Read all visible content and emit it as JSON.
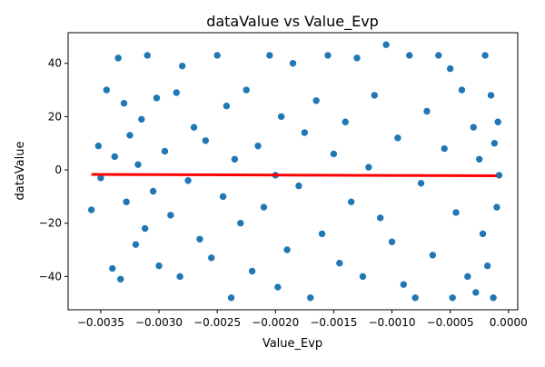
{
  "chart_data": {
    "type": "scatter",
    "title": "dataValue vs Value_Evp",
    "xlabel": "Value_Evp",
    "ylabel": "dataValue",
    "xlim": [
      -0.00378,
      8e-05
    ],
    "ylim": [
      -52.5,
      51.5
    ],
    "x_ticks": [
      -0.0035,
      -0.003,
      -0.0025,
      -0.002,
      -0.0015,
      -0.001,
      -0.0005,
      0.0
    ],
    "x_tick_labels": [
      "−0.0035",
      "−0.0030",
      "−0.0025",
      "−0.0020",
      "−0.0015",
      "−0.0010",
      "−0.0005",
      "0.0000"
    ],
    "y_ticks": [
      -40,
      -20,
      0,
      20,
      40
    ],
    "y_tick_labels": [
      "−40",
      "−20",
      "0",
      "20",
      "40"
    ],
    "grid": false,
    "colors": {
      "points": "#1f77b4",
      "point_edge": "#ffffff",
      "fit_line": "#ff0000"
    },
    "series": [
      {
        "type": "scatter",
        "values": [
          [
            -0.00358,
            -15
          ],
          [
            -0.00352,
            9
          ],
          [
            -0.0035,
            -3
          ],
          [
            -0.00345,
            30
          ],
          [
            -0.0034,
            -37
          ],
          [
            -0.00338,
            5
          ],
          [
            -0.00335,
            42
          ],
          [
            -0.00333,
            -41
          ],
          [
            -0.0033,
            25
          ],
          [
            -0.00328,
            -12
          ],
          [
            -0.00325,
            13
          ],
          [
            -0.0032,
            -28
          ],
          [
            -0.00318,
            2
          ],
          [
            -0.00315,
            19
          ],
          [
            -0.00312,
            -22
          ],
          [
            -0.0031,
            43
          ],
          [
            -0.00305,
            -8
          ],
          [
            -0.00302,
            27
          ],
          [
            -0.003,
            -36
          ],
          [
            -0.00295,
            7
          ],
          [
            -0.0029,
            -17
          ],
          [
            -0.00285,
            29
          ],
          [
            -0.00282,
            -40
          ],
          [
            -0.0028,
            39
          ],
          [
            -0.00275,
            -4
          ],
          [
            -0.0027,
            16
          ],
          [
            -0.00265,
            -26
          ],
          [
            -0.0026,
            11
          ],
          [
            -0.00255,
            -33
          ],
          [
            -0.0025,
            43
          ],
          [
            -0.00245,
            -10
          ],
          [
            -0.00242,
            24
          ],
          [
            -0.00238,
            -48
          ],
          [
            -0.00235,
            4
          ],
          [
            -0.0023,
            -20
          ],
          [
            -0.00225,
            30
          ],
          [
            -0.0022,
            -38
          ],
          [
            -0.00215,
            9
          ],
          [
            -0.0021,
            -14
          ],
          [
            -0.00205,
            43
          ],
          [
            -0.002,
            -2
          ],
          [
            -0.00198,
            -44
          ],
          [
            -0.00195,
            20
          ],
          [
            -0.0019,
            -30
          ],
          [
            -0.00185,
            40
          ],
          [
            -0.0018,
            -6
          ],
          [
            -0.00175,
            14
          ],
          [
            -0.0017,
            -48
          ],
          [
            -0.00165,
            26
          ],
          [
            -0.0016,
            -24
          ],
          [
            -0.00155,
            43
          ],
          [
            -0.0015,
            6
          ],
          [
            -0.00145,
            -35
          ],
          [
            -0.0014,
            18
          ],
          [
            -0.00135,
            -12
          ],
          [
            -0.0013,
            42
          ],
          [
            -0.00125,
            -40
          ],
          [
            -0.0012,
            1
          ],
          [
            -0.00115,
            28
          ],
          [
            -0.0011,
            -18
          ],
          [
            -0.00105,
            47
          ],
          [
            -0.001,
            -27
          ],
          [
            -0.00095,
            12
          ],
          [
            -0.0009,
            -43
          ],
          [
            -0.00085,
            43
          ],
          [
            -0.0008,
            -48
          ],
          [
            -0.00075,
            -5
          ],
          [
            -0.0007,
            22
          ],
          [
            -0.00065,
            -32
          ],
          [
            -0.0006,
            43
          ],
          [
            -0.00055,
            8
          ],
          [
            -0.0005,
            38
          ],
          [
            -0.00048,
            -48
          ],
          [
            -0.00045,
            -16
          ],
          [
            -0.0004,
            30
          ],
          [
            -0.00035,
            -40
          ],
          [
            -0.0003,
            16
          ],
          [
            -0.00028,
            -46
          ],
          [
            -0.00025,
            4
          ],
          [
            -0.00022,
            -24
          ],
          [
            -0.0002,
            43
          ],
          [
            -0.00018,
            -36
          ],
          [
            -0.00015,
            28
          ],
          [
            -0.00013,
            -48
          ],
          [
            -0.00012,
            10
          ],
          [
            -0.0001,
            -14
          ],
          [
            -9e-05,
            18
          ],
          [
            -8e-05,
            -2
          ]
        ]
      },
      {
        "type": "regression_line",
        "values": [
          [
            -0.00358,
            -1.7
          ],
          [
            -0.0001,
            -2.2
          ]
        ]
      }
    ]
  }
}
